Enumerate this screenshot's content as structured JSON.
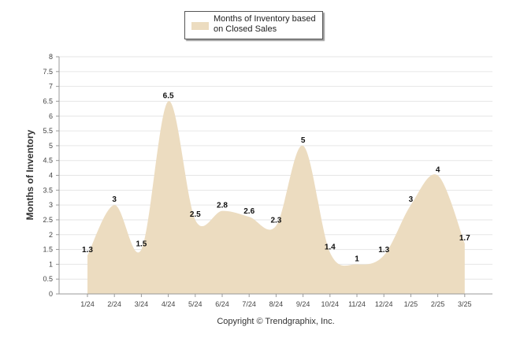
{
  "chart_data": {
    "type": "area",
    "categories": [
      "1/24",
      "2/24",
      "3/24",
      "4/24",
      "5/24",
      "6/24",
      "7/24",
      "8/24",
      "9/24",
      "10/24",
      "11/24",
      "12/24",
      "1/25",
      "2/25",
      "3/25"
    ],
    "series": [
      {
        "name": "Months of Inventory based on Closed Sales",
        "values": [
          1.3,
          3,
          1.5,
          6.5,
          2.5,
          2.8,
          2.6,
          2.3,
          5,
          1.4,
          1,
          1.3,
          3,
          4,
          1.7
        ]
      }
    ],
    "value_labels": [
      "1.3",
      "3",
      "1.5",
      "6.5",
      "2.5",
      "2.8",
      "2.6",
      "2.3",
      "5",
      "1.4",
      "1",
      "1.3",
      "3",
      "4",
      "1.7"
    ],
    "yticks": [
      "0",
      "0.5",
      "1",
      "1.5",
      "2",
      "2.5",
      "3",
      "3.5",
      "4",
      "4.5",
      "5",
      "5.5",
      "6",
      "6.5",
      "7",
      "7.5",
      "8"
    ],
    "ylim": [
      0,
      8
    ],
    "ylabel": "Months of Inventory",
    "xlabel": "",
    "grid": true,
    "legend_position": "top-center",
    "colors": {
      "fill": "#ecdcc0",
      "grid": "#e6e6e6",
      "axis": "#999999"
    }
  },
  "legend": {
    "label": "Months of Inventory based on Closed Sales"
  },
  "footer": {
    "copyright": "Copyright © Trendgraphix, Inc."
  }
}
